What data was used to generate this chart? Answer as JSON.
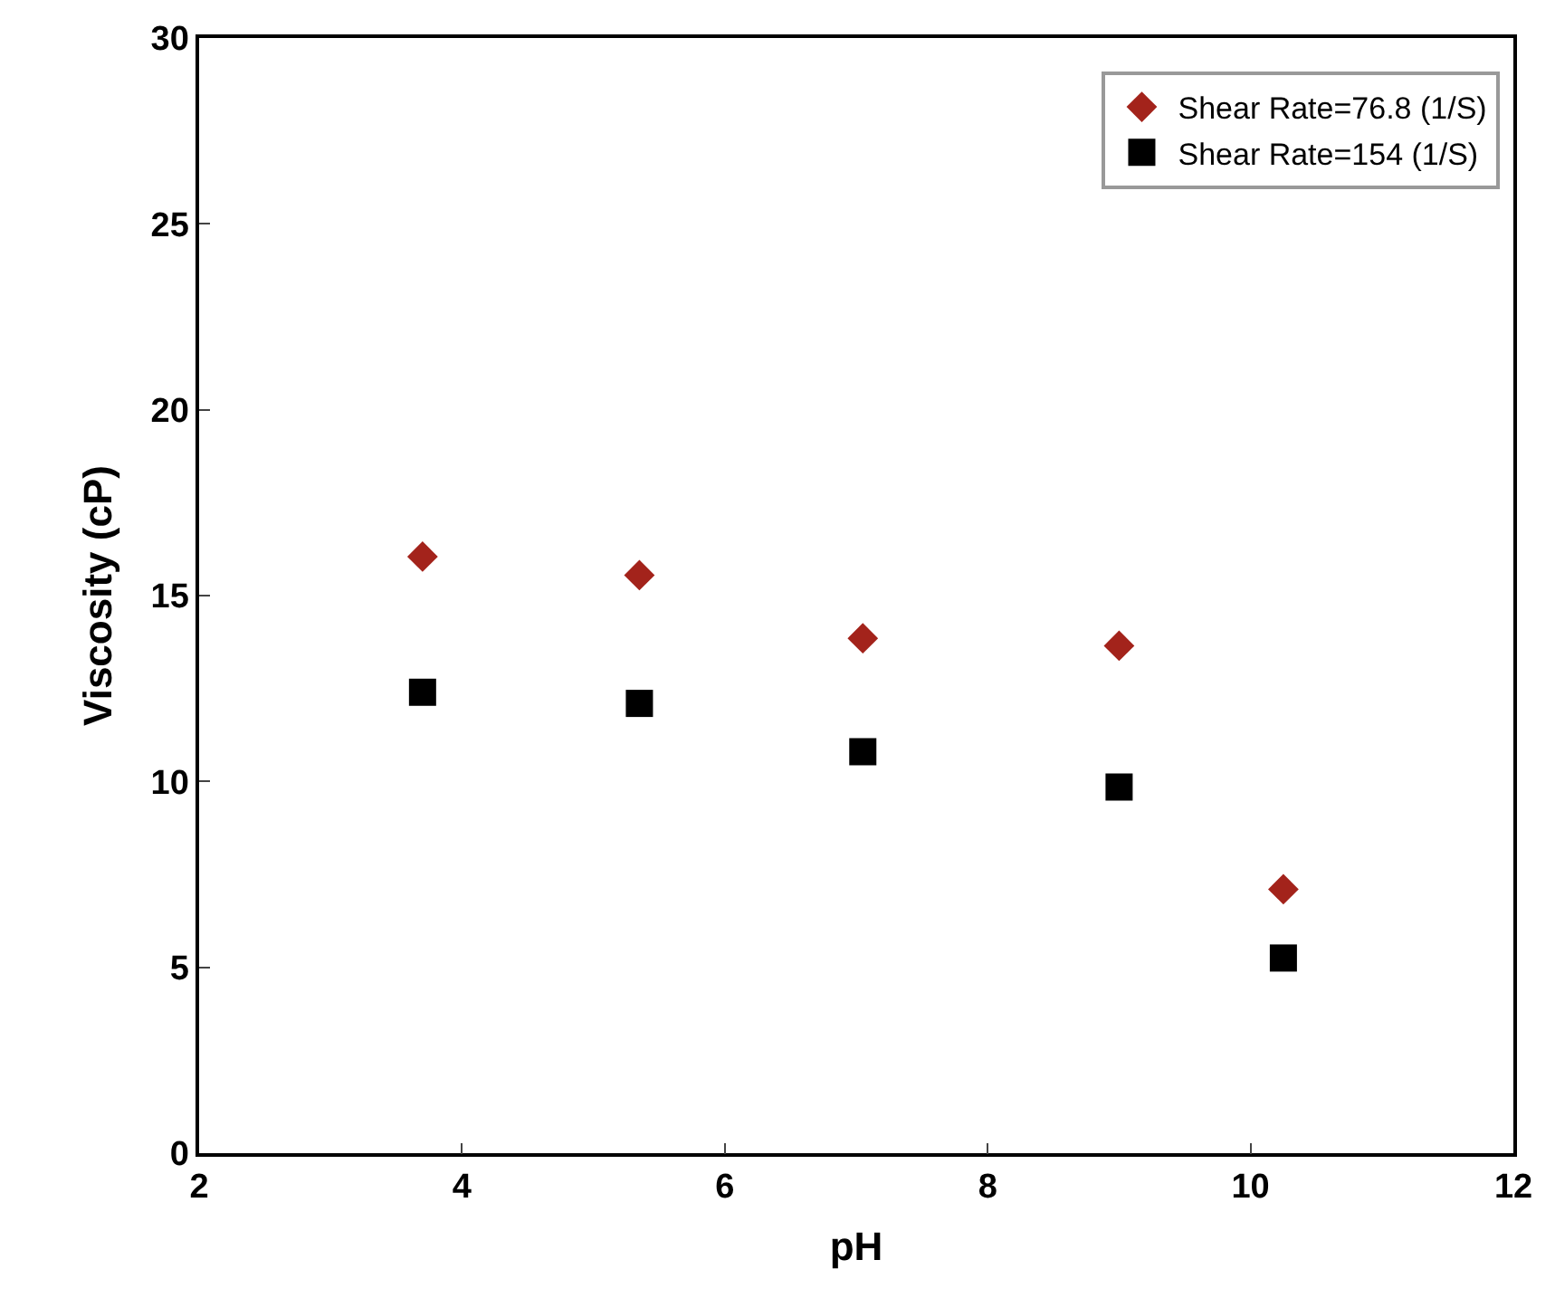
{
  "chart_data": {
    "type": "scatter",
    "xlabel": "pH",
    "ylabel": "Viscosity (cP)",
    "x": [
      3.7,
      5.35,
      7.05,
      9.0,
      10.25
    ],
    "series": [
      {
        "name": "Shear Rate=76.8 (1/S)",
        "color": "#a3231b",
        "marker": "diamond",
        "values": [
          16.05,
          15.55,
          13.85,
          13.65,
          7.1
        ]
      },
      {
        "name": "Shear Rate=154 (1/S)",
        "color": "#000000",
        "marker": "square",
        "values": [
          12.4,
          12.1,
          10.8,
          9.85,
          5.25
        ]
      }
    ],
    "xlim": [
      2,
      12
    ],
    "xticks": [
      2,
      4,
      6,
      8,
      10,
      12
    ],
    "ylim": [
      0,
      30
    ],
    "yticks": [
      0,
      5,
      10,
      15,
      20,
      25,
      30
    ],
    "legend": "top right"
  }
}
